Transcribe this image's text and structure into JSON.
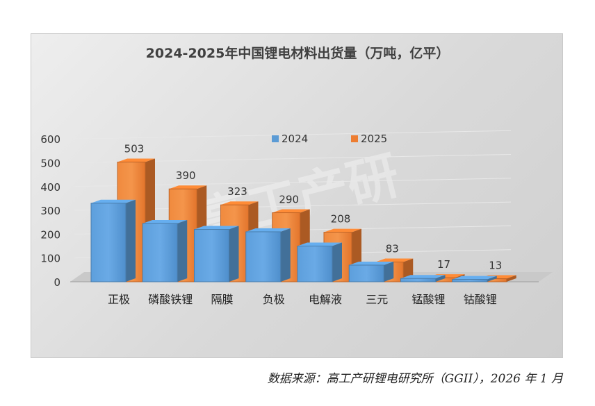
{
  "chart_data": {
    "type": "bar",
    "title": "2024-2025年中国锂电材料出货量（万吨，亿平）",
    "categories": [
      "正极",
      "磷酸铁锂",
      "隔膜",
      "负极",
      "电解液",
      "三元",
      "锰酸锂",
      "钴酸锂"
    ],
    "series": [
      {
        "name": "2024",
        "values": [
          330,
          245,
          220,
          210,
          150,
          70,
          14,
          10
        ],
        "color": "#5b9bd5",
        "labels_shown": false
      },
      {
        "name": "2025",
        "values": [
          503,
          390,
          323,
          290,
          208,
          83,
          17,
          13
        ],
        "color": "#ed7d31",
        "labels_shown": true
      }
    ],
    "yticks": [
      "0",
      "100",
      "200",
      "300",
      "400",
      "500",
      "600"
    ],
    "ylim": [
      0,
      600
    ],
    "legend_position": "top-center",
    "grid": true,
    "watermark": "高工产研"
  },
  "source_note": "数据来源：高工产研锂电研究所（GGII），2026 年 1 月"
}
